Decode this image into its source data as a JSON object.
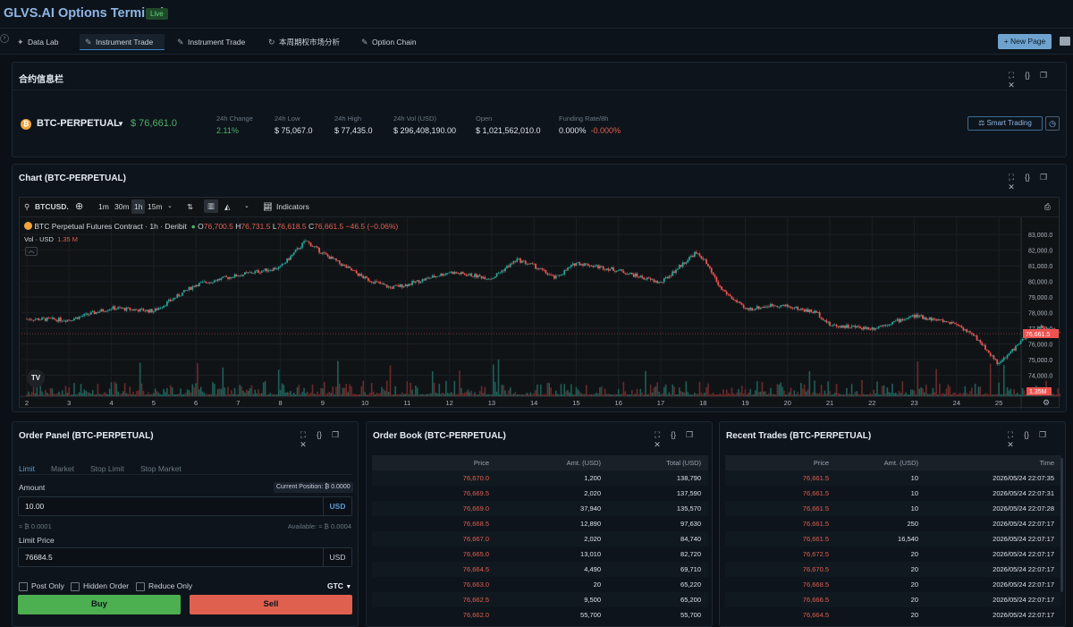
{
  "app": {
    "title": "GLVS.AI Options Terminal",
    "badge": "Live"
  },
  "tabs": [
    {
      "icon": "pin",
      "label": "Data Lab"
    },
    {
      "icon": "edit",
      "label": "Instrument Trade",
      "active": true
    },
    {
      "icon": "edit",
      "label": "Instrument Trade"
    },
    {
      "icon": "refresh",
      "label": "本周期权市场分析"
    },
    {
      "icon": "edit",
      "label": "Option Chain"
    }
  ],
  "new_page_label": "+ New Page",
  "contract_panel": {
    "title": "合约信息栏",
    "symbol": "BTC-PERPETUAL",
    "price": "$ 76,661.0",
    "stats": [
      {
        "label": "24h Change",
        "value": "2.11%"
      },
      {
        "label": "24h Low",
        "value": "$ 75,067.0"
      },
      {
        "label": "24h High",
        "value": "$ 77,435.0"
      },
      {
        "label": "24h Vol (USD)",
        "value": "$ 296,408,190.00"
      },
      {
        "label": "Open",
        "value": "$ 1,021,562,010.0"
      },
      {
        "label": "Funding Rate/8h",
        "value": "0.000%",
        "value2": "-0.000%"
      }
    ],
    "smart_trading_label": "Smart Trading"
  },
  "chart_panel": {
    "title": "Chart (BTC-PERPETUAL)",
    "symbol": "BTCUSD.",
    "timeframes": [
      "1m",
      "30m",
      "1h",
      "15m"
    ],
    "indicators_label": "Indicators",
    "legend_title": "BTC Perpetual Futures Contract · 1h · Deribit",
    "ohlc": {
      "o": "76,700.5",
      "h": "76,731.5",
      "l": "76,618.5",
      "c": "76,661.5",
      "chg": "−46.5 (−0.06%)"
    },
    "vol_label": "Vol · USD",
    "vol_value": "1.35 M",
    "price_tag": "76,661.5",
    "vol_tag": "1.35M"
  },
  "chart_data": {
    "type": "candlestick",
    "y_ticks": [
      83000,
      82000,
      81000,
      80000,
      79000,
      78000,
      77000,
      76000,
      75000,
      74000
    ],
    "ylim": [
      73800,
      83300
    ],
    "x_ticks": [
      "2",
      "3",
      "4",
      "5",
      "6",
      "7",
      "8",
      "9",
      "10",
      "11",
      "12",
      "13",
      "14",
      "15",
      "16",
      "17",
      "18",
      "19",
      "20",
      "21",
      "22",
      "23",
      "24",
      "25"
    ],
    "close_path": [
      [
        0,
        77600
      ],
      [
        1,
        77550
      ],
      [
        2,
        78300
      ],
      [
        3,
        78100
      ],
      [
        4,
        79800
      ],
      [
        5,
        80400
      ],
      [
        6,
        80900
      ],
      [
        6.6,
        82600
      ],
      [
        7,
        81800
      ],
      [
        7.5,
        81000
      ],
      [
        8,
        80200
      ],
      [
        8.6,
        79600
      ],
      [
        9,
        79800
      ],
      [
        10,
        80600
      ],
      [
        10.5,
        80400
      ],
      [
        11,
        80200
      ],
      [
        11.6,
        81400
      ],
      [
        12,
        81000
      ],
      [
        12.5,
        80200
      ],
      [
        13,
        81200
      ],
      [
        14,
        80700
      ],
      [
        15,
        79900
      ],
      [
        15.8,
        81800
      ],
      [
        16,
        81500
      ],
      [
        16.4,
        79600
      ],
      [
        17,
        78200
      ],
      [
        17.7,
        78500
      ],
      [
        18,
        78400
      ],
      [
        18.7,
        78000
      ],
      [
        19,
        77200
      ],
      [
        20,
        77000
      ],
      [
        21,
        77800
      ],
      [
        22,
        77300
      ],
      [
        22.5,
        76300
      ],
      [
        23,
        74700
      ],
      [
        23.5,
        76100
      ],
      [
        24,
        77100
      ],
      [
        24.5,
        76661.5
      ]
    ],
    "last_price": 76661.5,
    "last_volume_usd": "1.35M"
  },
  "order_panel": {
    "title": "Order Panel (BTC-PERPETUAL)",
    "tabs": [
      "Limit",
      "Market",
      "Stop Limit",
      "Stop Market"
    ],
    "amount_label": "Amount",
    "current_position": "Current Position: ₿ 0.0000",
    "amount_value": "10.00",
    "amount_unit": "USD",
    "btc_equiv": "≈ ₿ 0.0001",
    "available": "Available: ≈ ₿ 0.0004",
    "limit_label": "Limit Price",
    "limit_value": "76684.5",
    "limit_unit": "USD",
    "options": [
      "Post Only",
      "Hidden Order",
      "Reduce Only"
    ],
    "tif": "GTC",
    "buy": "Buy",
    "sell": "Sell"
  },
  "order_book": {
    "title": "Order Book (BTC-PERPETUAL)",
    "headers": [
      "Price",
      "Amt. (USD)",
      "Total (USD)"
    ],
    "rows": [
      [
        "76,670.0",
        "1,200",
        "138,790"
      ],
      [
        "76,669.5",
        "2,020",
        "137,590"
      ],
      [
        "76,669.0",
        "37,940",
        "135,570"
      ],
      [
        "76,668.5",
        "12,890",
        "97,630"
      ],
      [
        "76,667.0",
        "2,020",
        "84,740"
      ],
      [
        "76,665.0",
        "13,010",
        "82,720"
      ],
      [
        "76,664.5",
        "4,490",
        "69,710"
      ],
      [
        "76,663.0",
        "20",
        "65,220"
      ],
      [
        "76,662.5",
        "9,500",
        "65,200"
      ],
      [
        "76,662.0",
        "55,700",
        "55,700"
      ]
    ]
  },
  "recent_trades": {
    "title": "Recent Trades (BTC-PERPETUAL)",
    "headers": [
      "Price",
      "Amt. (USD)",
      "Time"
    ],
    "rows": [
      [
        "76,661.5",
        "10",
        "2026/05/24 22:07:35"
      ],
      [
        "76,661.5",
        "10",
        "2026/05/24 22:07:31"
      ],
      [
        "76,661.5",
        "10",
        "2026/05/24 22:07:28"
      ],
      [
        "76,661.5",
        "250",
        "2026/05/24 22:07:17"
      ],
      [
        "76,661.5",
        "16,540",
        "2026/05/24 22:07:17"
      ],
      [
        "76,672.5",
        "20",
        "2026/05/24 22:07:17"
      ],
      [
        "76,670.5",
        "20",
        "2026/05/24 22:07:17"
      ],
      [
        "76,668.5",
        "20",
        "2026/05/24 22:07:17"
      ],
      [
        "76,666.5",
        "20",
        "2026/05/24 22:07:17"
      ],
      [
        "76,664.5",
        "20",
        "2026/05/24 22:07:17"
      ]
    ]
  }
}
